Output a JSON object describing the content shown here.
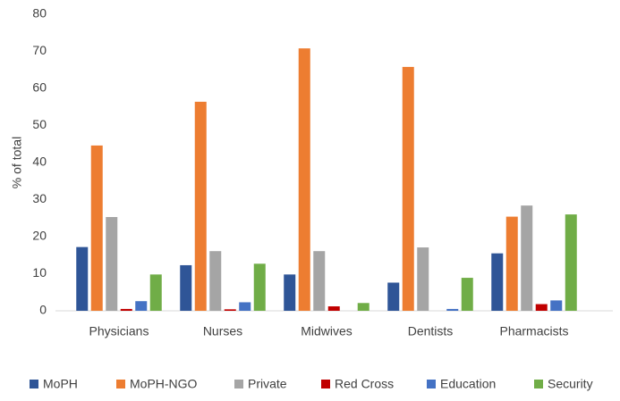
{
  "chart_data": {
    "type": "bar",
    "y_label": "% of total",
    "categories": [
      "Physicians",
      "Nurses",
      "Midwives",
      "Dentists",
      "Pharmacists"
    ],
    "series": [
      {
        "name": "MoPH",
        "color": "#2f5597",
        "values": [
          17.2,
          12.3,
          9.8,
          7.6,
          15.5
        ]
      },
      {
        "name": "MoPH-NGO",
        "color": "#ed7d31",
        "values": [
          44.6,
          56.4,
          70.8,
          65.8,
          25.4
        ]
      },
      {
        "name": "Private",
        "color": "#a5a5a5",
        "values": [
          25.3,
          16.1,
          16.1,
          17.1,
          28.4
        ]
      },
      {
        "name": "Red Cross",
        "color": "#c00000",
        "values": [
          0.5,
          0.4,
          1.2,
          0,
          1.8
        ]
      },
      {
        "name": "Education",
        "color": "#4472c4",
        "values": [
          2.6,
          2.3,
          0,
          0.5,
          2.8
        ]
      },
      {
        "name": "Security",
        "color": "#70ad47",
        "values": [
          9.8,
          12.7,
          2.1,
          8.9,
          26.0
        ]
      }
    ],
    "ylim": [
      0,
      80
    ],
    "yticks": [
      0,
      10,
      20,
      30,
      40,
      50,
      60,
      70,
      80
    ],
    "grid": false,
    "legend": "bottom"
  }
}
